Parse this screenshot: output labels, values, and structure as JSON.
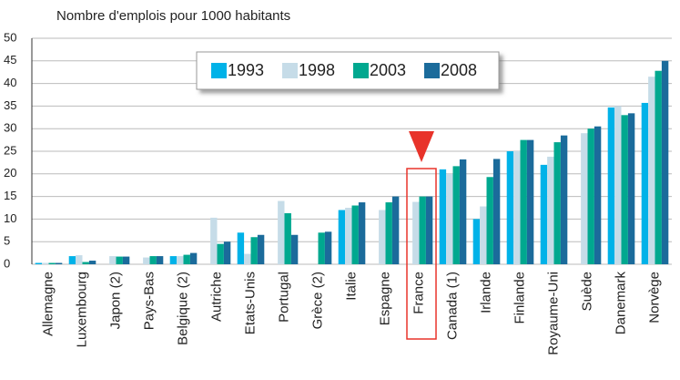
{
  "chart_data": {
    "type": "bar",
    "title": "Nombre d'emplois pour 1000 habitants",
    "categories": [
      "Allemagne",
      "Luxembourg",
      "Japon (2)",
      "Pays-Bas",
      "Belgique (2)",
      "Autriche",
      "Etats-Unis",
      "Portugal",
      "Grèce (2)",
      "Italie",
      "Espagne",
      "France",
      "Canada (1)",
      "Irlande",
      "Finlande",
      "Royaume-Uni",
      "Suède",
      "Danemark",
      "Norvège"
    ],
    "series": [
      {
        "name": "1993",
        "color": "#00b2e8",
        "values": [
          0.3,
          1.8,
          0,
          0,
          1.8,
          0,
          7,
          0,
          0,
          12,
          0,
          0,
          21,
          10,
          25,
          22,
          0,
          34.7,
          35.7
        ]
      },
      {
        "name": "1998",
        "color": "#c6dce8",
        "values": [
          0.3,
          2,
          1.8,
          1.5,
          1.8,
          10.3,
          2.3,
          14,
          0,
          12.5,
          12,
          13.8,
          20,
          12.8,
          25,
          23.8,
          29,
          35,
          41.5
        ]
      },
      {
        "name": "2003",
        "color": "#00a88f",
        "values": [
          0.3,
          0.5,
          1.7,
          1.8,
          2.1,
          4.5,
          6,
          11.3,
          7,
          13,
          13.7,
          15,
          21.7,
          19.3,
          27.5,
          27,
          30,
          33,
          42.8
        ]
      },
      {
        "name": "2008",
        "color": "#1b6b9b",
        "values": [
          0.3,
          0.8,
          1.7,
          1.8,
          2.5,
          5,
          6.5,
          6.5,
          7.2,
          13.7,
          15,
          15,
          23.2,
          23.3,
          27.5,
          28.5,
          30.5,
          33.4,
          45
        ]
      }
    ],
    "ylim": [
      0,
      50
    ],
    "yticks": [
      0,
      5,
      10,
      15,
      20,
      25,
      30,
      35,
      40,
      45,
      50
    ],
    "grid": true
  }
}
